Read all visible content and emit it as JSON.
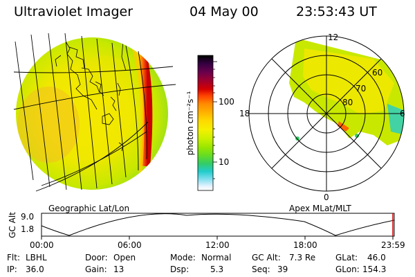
{
  "header": {
    "instrument": "Ultraviolet Imager",
    "date": "04 May 00",
    "time": "23:53:43 UT"
  },
  "left_panel": {
    "caption": "Geographic Lat/Lon"
  },
  "right_panel": {
    "caption": "Apex MLat/MLT",
    "mlt_labels": [
      "12",
      "18",
      "6",
      "0"
    ],
    "mlat_labels": [
      "60",
      "70",
      "80"
    ]
  },
  "colorbar": {
    "unit_label": "photon cm⁻²s⁻¹",
    "ticks": [
      "100",
      "10"
    ],
    "colors": [
      "#000000",
      "#330040",
      "#66004d",
      "#990033",
      "#d40000",
      "#ff4400",
      "#ff8c00",
      "#ffb000",
      "#ffd700",
      "#f5f000",
      "#c8f000",
      "#9ae600",
      "#66dd22",
      "#33cc66",
      "#22cccc",
      "#88e0f0",
      "#e8f4ff",
      "#ffffff"
    ]
  },
  "altitude_plot": {
    "ylabel": "GC Alt",
    "yticks": [
      "9.0",
      "1.8"
    ],
    "xticks": [
      "00:00",
      "06:00",
      "12:00",
      "18:00",
      "23:59"
    ]
  },
  "status": [
    [
      {
        "k": "Flt:",
        "v": "LBHL"
      },
      {
        "k": "Door:",
        "v": "Open"
      },
      {
        "k": "Mode:",
        "v": "Normal"
      },
      {
        "k": "GC Alt:",
        "v": "7.3 Re"
      },
      {
        "k": "GLat:",
        "v": "46.0"
      }
    ],
    [
      {
        "k": "IP:",
        "v": "36.0"
      },
      {
        "k": "Gain:",
        "v": "13"
      },
      {
        "k": "Dsp:",
        "v": "5.3"
      },
      {
        "k": "Seq:",
        "v": "39"
      },
      {
        "k": "GLon:",
        "v": "154.3"
      }
    ]
  ]
}
